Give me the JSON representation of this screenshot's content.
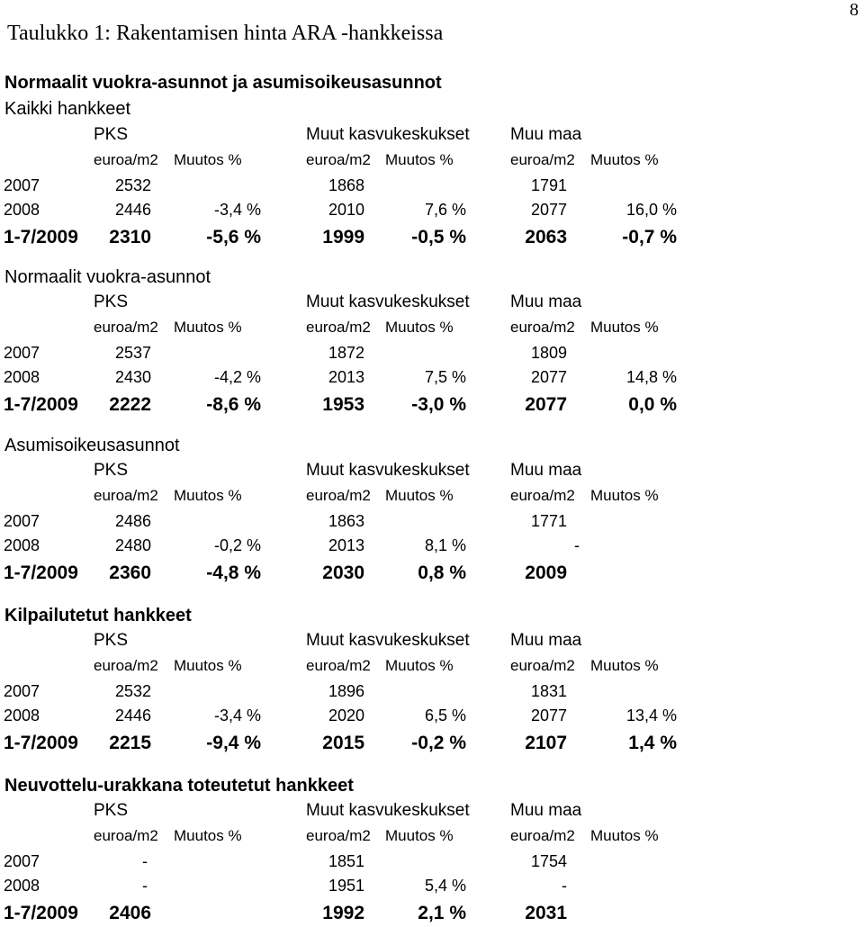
{
  "page_number": "8",
  "title": "Taulukko 1: Rakentamisen hinta ARA -hankkeissa",
  "column_headers": {
    "regions": [
      "PKS",
      "Muut kasvukeskukset",
      "Muu maa"
    ],
    "units": [
      "euroa/m2",
      "Muutos %",
      "euroa/m2",
      "Muutos %",
      "euroa/m2",
      "Muutos %"
    ]
  },
  "sections": [
    {
      "heading": "Normaalit vuokra-asunnot ja asumisoikeusasunnot",
      "subheading": "Kaikki hankkeet",
      "rows": [
        {
          "year": "2007",
          "cells": [
            "2532",
            "",
            "1868",
            "",
            "1791",
            ""
          ]
        },
        {
          "year": "2008",
          "cells": [
            "2446",
            "-3,4 %",
            "2010",
            "7,6 %",
            "2077",
            "16,0 %"
          ]
        },
        {
          "year": "1-7/2009",
          "cells": [
            "2310",
            "-5,6 %",
            "1999",
            "-0,5 %",
            "2063",
            "-0,7 %"
          ]
        }
      ]
    },
    {
      "heading": "Normaalit vuokra-asunnot",
      "subheading": "",
      "rows": [
        {
          "year": "2007",
          "cells": [
            "2537",
            "",
            "1872",
            "",
            "1809",
            ""
          ]
        },
        {
          "year": "2008",
          "cells": [
            "2430",
            "-4,2 %",
            "2013",
            "7,5 %",
            "2077",
            "14,8 %"
          ]
        },
        {
          "year": "1-7/2009",
          "cells": [
            "2222",
            "-8,6 %",
            "1953",
            "-3,0 %",
            "2077",
            "0,0 %"
          ]
        }
      ]
    },
    {
      "heading": "Asumisoikeusasunnot",
      "subheading": "",
      "rows": [
        {
          "year": "2007",
          "cells": [
            "2486",
            "",
            "1863",
            "",
            "1771",
            ""
          ]
        },
        {
          "year": "2008",
          "cells": [
            "2480",
            "-0,2 %",
            "2013",
            "8,1 %",
            "-",
            ""
          ]
        },
        {
          "year": "1-7/2009",
          "cells": [
            "2360",
            "-4,8 %",
            "2030",
            "0,8 %",
            "2009",
            ""
          ]
        }
      ]
    },
    {
      "heading": "Kilpailutetut hankkeet",
      "subheading": "",
      "rows": [
        {
          "year": "2007",
          "cells": [
            "2532",
            "",
            "1896",
            "",
            "1831",
            ""
          ]
        },
        {
          "year": "2008",
          "cells": [
            "2446",
            "-3,4 %",
            "2020",
            "6,5 %",
            "2077",
            "13,4 %"
          ]
        },
        {
          "year": "1-7/2009",
          "cells": [
            "2215",
            "-9,4 %",
            "2015",
            "-0,2 %",
            "2107",
            "1,4 %"
          ]
        }
      ]
    },
    {
      "heading": "Neuvottelu-urakkana toteutetut hankkeet",
      "subheading": "",
      "rows": [
        {
          "year": "2007",
          "cells": [
            "-",
            "",
            "1851",
            "",
            "1754",
            ""
          ]
        },
        {
          "year": "2008",
          "cells": [
            "-",
            "",
            "1951",
            "5,4 %",
            "-",
            ""
          ]
        },
        {
          "year": "1-7/2009",
          "cells": [
            "2406",
            "",
            "1992",
            "2,1 %",
            "2031",
            ""
          ]
        }
      ]
    }
  ]
}
